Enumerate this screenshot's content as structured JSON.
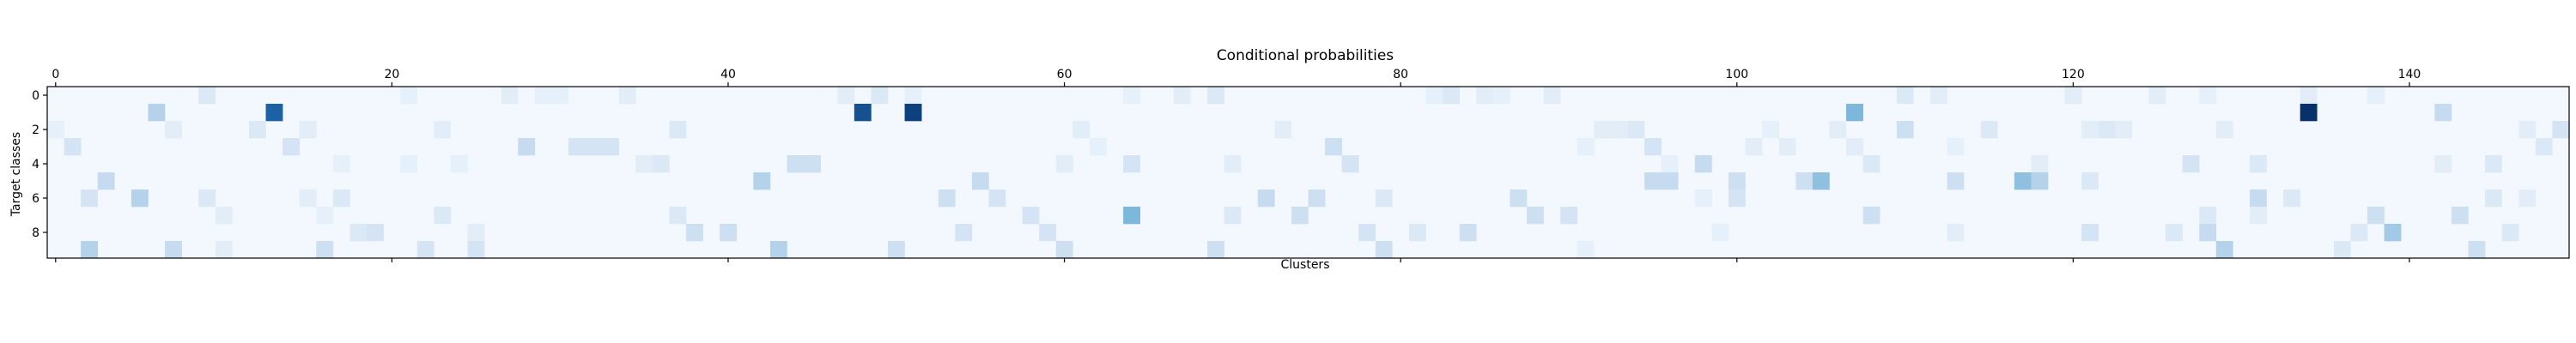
{
  "chart_data": {
    "type": "heatmap",
    "title": "Conditional probabilities",
    "xlabel": "Clusters",
    "ylabel": "Target classes",
    "n_rows": 10,
    "n_cols": 150,
    "xlim": [
      0,
      149
    ],
    "ylim": [
      0,
      9
    ],
    "x_ticks": [
      0,
      20,
      40,
      60,
      80,
      100,
      120,
      140
    ],
    "y_ticks": [
      0,
      2,
      4,
      6,
      8
    ],
    "x_axis_position": "top-and-bottom",
    "grid": false,
    "colormap": "Blues",
    "color_low": "#f7fbff",
    "color_high": "#08306b",
    "value_range": [
      0,
      1
    ],
    "background_value": 0.03,
    "cells": [
      [
        0,
        9,
        0.2
      ],
      [
        0,
        21,
        0.12
      ],
      [
        0,
        27,
        0.15
      ],
      [
        0,
        29,
        0.12
      ],
      [
        0,
        30,
        0.12
      ],
      [
        0,
        34,
        0.15
      ],
      [
        0,
        47,
        0.15
      ],
      [
        0,
        49,
        0.2
      ],
      [
        0,
        51,
        0.12
      ],
      [
        0,
        64,
        0.12
      ],
      [
        0,
        67,
        0.15
      ],
      [
        0,
        69,
        0.2
      ],
      [
        0,
        82,
        0.12
      ],
      [
        0,
        83,
        0.2
      ],
      [
        0,
        85,
        0.15
      ],
      [
        0,
        86,
        0.12
      ],
      [
        0,
        89,
        0.15
      ],
      [
        0,
        110,
        0.2
      ],
      [
        0,
        112,
        0.15
      ],
      [
        0,
        120,
        0.15
      ],
      [
        0,
        125,
        0.15
      ],
      [
        0,
        128,
        0.12
      ],
      [
        0,
        134,
        0.15
      ],
      [
        0,
        138,
        0.12
      ],
      [
        1,
        6,
        0.4
      ],
      [
        1,
        13,
        0.85
      ],
      [
        1,
        48,
        0.9
      ],
      [
        1,
        51,
        0.95
      ],
      [
        1,
        107,
        0.55
      ],
      [
        1,
        134,
        1.0
      ],
      [
        1,
        142,
        0.35
      ],
      [
        2,
        0,
        0.12
      ],
      [
        2,
        7,
        0.15
      ],
      [
        2,
        12,
        0.2
      ],
      [
        2,
        15,
        0.15
      ],
      [
        2,
        23,
        0.15
      ],
      [
        2,
        37,
        0.2
      ],
      [
        2,
        61,
        0.15
      ],
      [
        2,
        73,
        0.15
      ],
      [
        2,
        92,
        0.15
      ],
      [
        2,
        93,
        0.15
      ],
      [
        2,
        94,
        0.2
      ],
      [
        2,
        102,
        0.12
      ],
      [
        2,
        106,
        0.15
      ],
      [
        2,
        110,
        0.3
      ],
      [
        2,
        115,
        0.2
      ],
      [
        2,
        121,
        0.15
      ],
      [
        2,
        122,
        0.2
      ],
      [
        2,
        123,
        0.15
      ],
      [
        2,
        129,
        0.15
      ],
      [
        2,
        147,
        0.15
      ],
      [
        2,
        149,
        0.25
      ],
      [
        3,
        1,
        0.25
      ],
      [
        3,
        14,
        0.25
      ],
      [
        3,
        28,
        0.35
      ],
      [
        3,
        31,
        0.25
      ],
      [
        3,
        32,
        0.25
      ],
      [
        3,
        33,
        0.25
      ],
      [
        3,
        62,
        0.12
      ],
      [
        3,
        76,
        0.3
      ],
      [
        3,
        91,
        0.12
      ],
      [
        3,
        95,
        0.25
      ],
      [
        3,
        101,
        0.15
      ],
      [
        3,
        103,
        0.15
      ],
      [
        3,
        107,
        0.15
      ],
      [
        3,
        113,
        0.12
      ],
      [
        3,
        148,
        0.2
      ],
      [
        4,
        17,
        0.12
      ],
      [
        4,
        21,
        0.12
      ],
      [
        4,
        24,
        0.12
      ],
      [
        4,
        35,
        0.15
      ],
      [
        4,
        36,
        0.2
      ],
      [
        4,
        44,
        0.3
      ],
      [
        4,
        45,
        0.3
      ],
      [
        4,
        60,
        0.15
      ],
      [
        4,
        64,
        0.25
      ],
      [
        4,
        70,
        0.15
      ],
      [
        4,
        77,
        0.25
      ],
      [
        4,
        96,
        0.12
      ],
      [
        4,
        98,
        0.35
      ],
      [
        4,
        108,
        0.2
      ],
      [
        4,
        118,
        0.15
      ],
      [
        4,
        127,
        0.25
      ],
      [
        4,
        131,
        0.2
      ],
      [
        4,
        142,
        0.15
      ],
      [
        4,
        145,
        0.2
      ],
      [
        5,
        3,
        0.35
      ],
      [
        5,
        42,
        0.4
      ],
      [
        5,
        55,
        0.35
      ],
      [
        5,
        95,
        0.35
      ],
      [
        5,
        96,
        0.35
      ],
      [
        5,
        100,
        0.3
      ],
      [
        5,
        104,
        0.3
      ],
      [
        5,
        105,
        0.5
      ],
      [
        5,
        113,
        0.3
      ],
      [
        5,
        117,
        0.5
      ],
      [
        5,
        118,
        0.4
      ],
      [
        5,
        121,
        0.2
      ],
      [
        6,
        2,
        0.25
      ],
      [
        6,
        5,
        0.4
      ],
      [
        6,
        9,
        0.2
      ],
      [
        6,
        15,
        0.15
      ],
      [
        6,
        17,
        0.2
      ],
      [
        6,
        53,
        0.3
      ],
      [
        6,
        56,
        0.25
      ],
      [
        6,
        72,
        0.35
      ],
      [
        6,
        75,
        0.3
      ],
      [
        6,
        79,
        0.2
      ],
      [
        6,
        87,
        0.3
      ],
      [
        6,
        98,
        0.12
      ],
      [
        6,
        100,
        0.25
      ],
      [
        6,
        131,
        0.35
      ],
      [
        6,
        133,
        0.2
      ],
      [
        6,
        145,
        0.2
      ],
      [
        6,
        147,
        0.15
      ],
      [
        7,
        10,
        0.15
      ],
      [
        7,
        16,
        0.12
      ],
      [
        7,
        23,
        0.2
      ],
      [
        7,
        37,
        0.2
      ],
      [
        7,
        58,
        0.25
      ],
      [
        7,
        64,
        0.55
      ],
      [
        7,
        70,
        0.2
      ],
      [
        7,
        74,
        0.3
      ],
      [
        7,
        88,
        0.3
      ],
      [
        7,
        90,
        0.25
      ],
      [
        7,
        108,
        0.3
      ],
      [
        7,
        128,
        0.2
      ],
      [
        7,
        131,
        0.15
      ],
      [
        7,
        138,
        0.3
      ],
      [
        7,
        143,
        0.3
      ],
      [
        8,
        18,
        0.2
      ],
      [
        8,
        19,
        0.25
      ],
      [
        8,
        25,
        0.15
      ],
      [
        8,
        38,
        0.3
      ],
      [
        8,
        40,
        0.3
      ],
      [
        8,
        54,
        0.25
      ],
      [
        8,
        59,
        0.25
      ],
      [
        8,
        78,
        0.25
      ],
      [
        8,
        81,
        0.2
      ],
      [
        8,
        84,
        0.3
      ],
      [
        8,
        99,
        0.12
      ],
      [
        8,
        113,
        0.15
      ],
      [
        8,
        121,
        0.25
      ],
      [
        8,
        126,
        0.2
      ],
      [
        8,
        128,
        0.35
      ],
      [
        8,
        137,
        0.2
      ],
      [
        8,
        139,
        0.45
      ],
      [
        8,
        146,
        0.2
      ],
      [
        9,
        2,
        0.4
      ],
      [
        9,
        7,
        0.35
      ],
      [
        9,
        10,
        0.15
      ],
      [
        9,
        16,
        0.3
      ],
      [
        9,
        22,
        0.25
      ],
      [
        9,
        25,
        0.25
      ],
      [
        9,
        43,
        0.4
      ],
      [
        9,
        50,
        0.3
      ],
      [
        9,
        60,
        0.3
      ],
      [
        9,
        69,
        0.3
      ],
      [
        9,
        79,
        0.3
      ],
      [
        9,
        91,
        0.12
      ],
      [
        9,
        129,
        0.4
      ],
      [
        9,
        136,
        0.2
      ],
      [
        9,
        144,
        0.3
      ]
    ]
  }
}
